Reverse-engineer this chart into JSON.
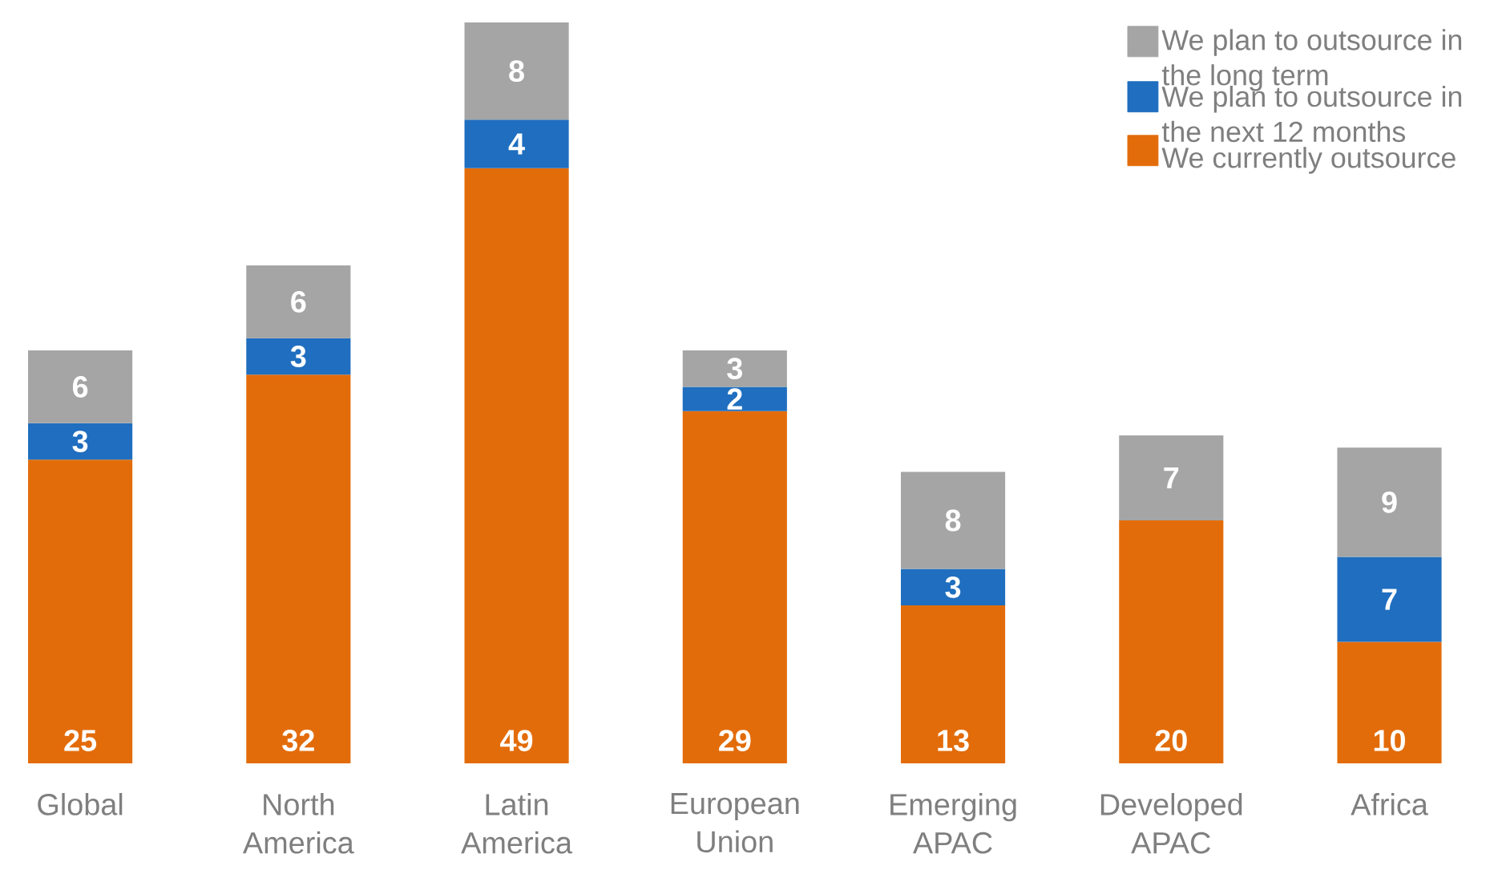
{
  "chart_data": {
    "type": "bar",
    "stacked": true,
    "data_labels": true,
    "legend": "top right",
    "categories": [
      "Global",
      "North America",
      "Latin America",
      "European Union",
      "Emerging APAC",
      "Developed APAC",
      "Africa"
    ],
    "series": [
      {
        "name": "We currently outsource",
        "color": "#e36c0a",
        "values": [
          25,
          32,
          49,
          29,
          13,
          20,
          10
        ]
      },
      {
        "name": "We plan to outsource in the next 12 months",
        "color": "#1f6ebf",
        "values": [
          3,
          3,
          4,
          2,
          3,
          null,
          7
        ]
      },
      {
        "name": "We plan to outsource in the long term",
        "color": "#a5a5a5",
        "values": [
          6,
          6,
          8,
          3,
          8,
          7,
          9
        ]
      }
    ]
  }
}
